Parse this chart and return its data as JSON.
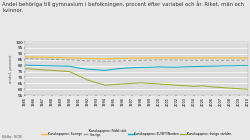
{
  "title": "Andel behöriga till gymnasium i befolkningen, procent efter variabel och år. Riket, män och\nkvinnor.",
  "ylabel": "andel, procent",
  "background_color": "#e8e8e8",
  "plot_bg": "#dcdcdc",
  "years": [
    1985,
    1986,
    1987,
    1988,
    1989,
    1990,
    1991,
    1992,
    1993,
    1994,
    1995,
    1996,
    1997,
    1998,
    1999,
    2000,
    2001,
    2002,
    2003,
    2004,
    2005,
    2006,
    2007,
    2008,
    2009,
    2010
  ],
  "series": [
    {
      "name": "Sverige",
      "color": "#f5c040",
      "style": "solid",
      "lw": 0.9,
      "values": [
        87.5,
        87.3,
        87.1,
        86.9,
        86.7,
        86.5,
        86.3,
        86.1,
        85.9,
        85.8,
        86.0,
        86.2,
        86.3,
        86.4,
        86.5,
        86.6,
        86.6,
        86.5,
        86.4,
        86.4,
        86.5,
        86.5,
        86.4,
        86.5,
        86.6,
        86.5
      ]
    },
    {
      "name": "Född i Sverige",
      "color": "#999999",
      "style": "dashed",
      "lw": 0.7,
      "values": [
        86.0,
        85.8,
        85.5,
        85.3,
        85.1,
        84.9,
        84.5,
        84.2,
        84.0,
        83.8,
        83.9,
        84.1,
        84.3,
        84.5,
        84.6,
        84.8,
        84.8,
        84.7,
        84.6,
        84.5,
        84.6,
        84.5,
        84.4,
        84.5,
        84.6,
        84.5
      ]
    },
    {
      "name": "EU/EFT/Norden",
      "color": "#00aacc",
      "style": "solid",
      "lw": 0.7,
      "values": [
        80.5,
        80.2,
        80.0,
        79.8,
        79.6,
        79.5,
        78.0,
        77.0,
        76.5,
        76.0,
        77.0,
        77.8,
        78.2,
        78.5,
        78.6,
        79.0,
        78.8,
        78.7,
        79.0,
        79.2,
        79.4,
        79.5,
        79.7,
        79.8,
        80.0,
        80.0
      ]
    },
    {
      "name": "Övriga världen",
      "color": "#99aa22",
      "style": "solid",
      "lw": 0.7,
      "values": [
        77.5,
        77.0,
        76.5,
        76.0,
        75.5,
        75.0,
        71.5,
        68.0,
        65.5,
        63.5,
        64.0,
        64.5,
        65.0,
        65.5,
        65.0,
        64.5,
        64.0,
        63.5,
        63.0,
        62.5,
        63.0,
        62.0,
        61.5,
        61.0,
        60.5,
        60.0
      ]
    }
  ],
  "ylim": [
    55.0,
    100.0
  ],
  "yticks": [
    55.0,
    60.0,
    65.0,
    70.0,
    75.0,
    80.0,
    85.0,
    90.0,
    95.0,
    100.0
  ],
  "source": "Källa: SCB",
  "legend": [
    {
      "label": "Kunskapsprov: Sverige",
      "color": "#f5c040",
      "style": "solid"
    },
    {
      "label": "Kunskapsprov: Född i det\nSverige",
      "color": "#999999",
      "style": "dashed"
    },
    {
      "label": "Kunskapsprov: EU/EFT/Norden",
      "color": "#00aacc",
      "style": "solid"
    },
    {
      "label": "Kunskapsprov: övriga världen",
      "color": "#99aa22",
      "style": "solid"
    }
  ]
}
